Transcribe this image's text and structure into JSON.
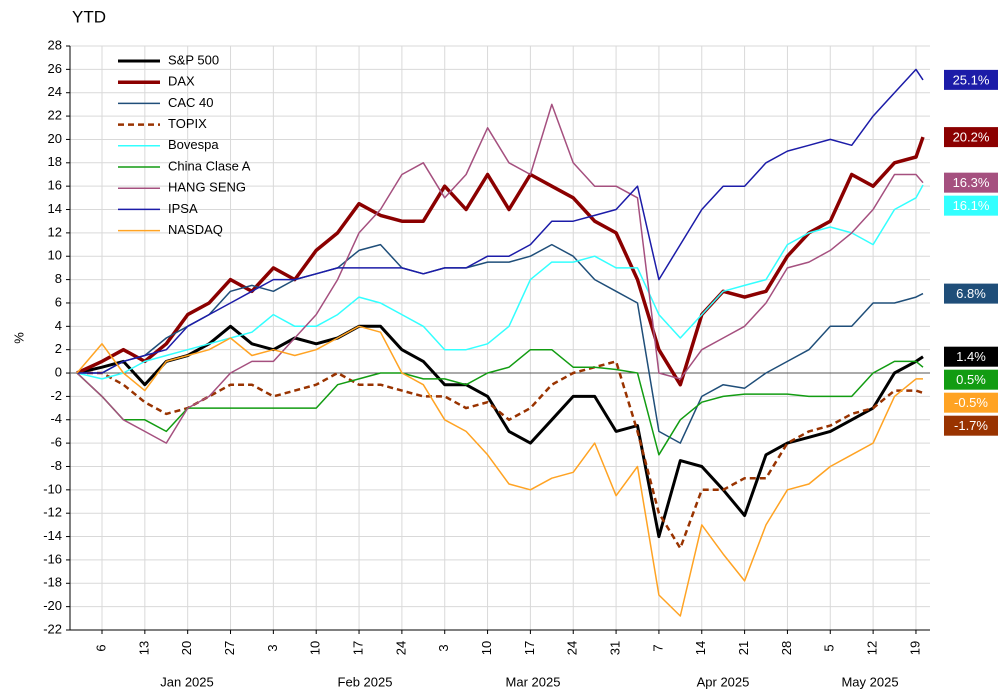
{
  "chart_data": {
    "type": "line",
    "title": "YTD",
    "y_label": "%",
    "categories": [
      null,
      "6",
      null,
      "13",
      null,
      "20",
      null,
      "27",
      null,
      "3",
      null,
      "10",
      null,
      "17",
      null,
      "24",
      null,
      "3",
      null,
      "10",
      null,
      "17",
      null,
      "24",
      null,
      "31",
      null,
      "7",
      null,
      "14",
      null,
      "21",
      null,
      "28",
      null,
      "5",
      null,
      "12",
      null,
      "19",
      null
    ],
    "month_labels": [
      "Jan 2025",
      "Feb 2025",
      "Mar 2025",
      "Apr 2025",
      "May 2025"
    ],
    "ylim": [
      -22,
      28
    ],
    "yticks": [
      -22,
      -20,
      -18,
      -16,
      -14,
      -12,
      -10,
      -8,
      -6,
      -4,
      -2,
      0,
      2,
      4,
      6,
      8,
      10,
      12,
      14,
      16,
      18,
      20,
      22,
      24,
      26,
      28
    ],
    "grid": true,
    "series": [
      {
        "name": "S&P 500",
        "color": "#000000",
        "width": 3,
        "end_label": "1.4%",
        "values": [
          0,
          0.5,
          1,
          -1,
          1,
          1.5,
          2.5,
          4,
          2.5,
          2,
          3,
          2.5,
          3,
          4,
          4,
          2,
          1,
          -1,
          -1,
          -2,
          -5,
          -6,
          -4,
          -2,
          -2,
          -5,
          -4.5,
          -14,
          -7.5,
          -8,
          -10,
          -12.2,
          -7,
          -6,
          -5.5,
          -5,
          -4,
          -3,
          0,
          1,
          1.4
        ]
      },
      {
        "name": "DAX",
        "color": "#8b0000",
        "width": 3.5,
        "end_label": "20.2%",
        "values": [
          0,
          1,
          2,
          1,
          2.5,
          5,
          6,
          8,
          7,
          9,
          8,
          10.5,
          12,
          14.5,
          13.5,
          13,
          13,
          16,
          14,
          17,
          14,
          17,
          16,
          15,
          13,
          12,
          8,
          2,
          -1,
          5,
          7,
          6.5,
          7,
          10,
          12,
          13,
          17,
          16,
          18,
          18.5,
          20.2
        ]
      },
      {
        "name": "CAC 40",
        "color": "#1f4e79",
        "width": 1.5,
        "end_label": "6.8%",
        "values": [
          0,
          0,
          1,
          1.5,
          3,
          4,
          5,
          7,
          7.5,
          7,
          8,
          8.5,
          9,
          10.5,
          11,
          9,
          8.5,
          9,
          9,
          9.5,
          9.5,
          10,
          11,
          10,
          8,
          7,
          6,
          -5,
          -6,
          -2,
          -1,
          -1.3,
          0,
          1,
          2,
          4,
          4,
          6,
          6,
          6.5,
          6.8
        ]
      },
      {
        "name": "TOPIX",
        "color": "#993300",
        "width": 2.5,
        "dashed": true,
        "end_label": "-1.7%",
        "values": [
          0,
          0,
          -1,
          -2.5,
          -3.5,
          -3,
          -2,
          -1,
          -1,
          -2,
          -1.5,
          -1,
          0,
          -1,
          -1,
          -1.5,
          -2,
          -2,
          -3,
          -2.5,
          -4,
          -3,
          -1,
          0,
          0.5,
          1,
          -5,
          -12,
          -15,
          -10,
          -10,
          -9,
          -9,
          -6,
          -5,
          -4.5,
          -3.5,
          -3,
          -1.5,
          -1.5,
          -1.7
        ]
      },
      {
        "name": "Bovespa",
        "color": "#33ffff",
        "width": 1.5,
        "end_label": "16.1%",
        "values": [
          0,
          -0.5,
          0,
          1,
          1.5,
          2,
          2.5,
          3,
          3.5,
          5,
          4,
          4,
          5,
          6.5,
          6,
          5,
          4,
          2,
          2,
          2.5,
          4,
          8,
          9.5,
          9.5,
          10,
          9,
          9,
          5,
          3,
          5,
          7,
          7.5,
          8,
          11,
          12,
          12.5,
          12,
          11,
          14,
          15,
          16.1
        ]
      },
      {
        "name": "China Clase A",
        "color": "#129c12",
        "width": 1.5,
        "end_label": "0.5%",
        "values": [
          0,
          -2,
          -4,
          -4,
          -5,
          -3,
          -3,
          -3,
          -3,
          -3,
          -3,
          -3,
          -1,
          -0.5,
          0,
          0,
          -0.5,
          -0.5,
          -1,
          0,
          0.5,
          2,
          2,
          0.5,
          0.5,
          0.3,
          0,
          -7,
          -4,
          -2.5,
          -2,
          -1.8,
          -1.8,
          -1.8,
          -2,
          -2,
          -2,
          0,
          1,
          1,
          0.5
        ]
      },
      {
        "name": "HANG SENG",
        "color": "#a5507f",
        "width": 1.5,
        "end_label": "16.3%",
        "values": [
          0,
          -2,
          -4,
          -5,
          -6,
          -3,
          -2,
          0,
          1,
          1,
          3,
          5,
          8,
          12,
          14,
          17,
          18,
          15,
          17,
          21,
          18,
          17,
          23,
          18,
          16,
          16,
          15,
          0,
          -0.5,
          2,
          3,
          4,
          6,
          9,
          9.5,
          10.5,
          12,
          14,
          17,
          17,
          16.3
        ]
      },
      {
        "name": "IPSA",
        "color": "#1c1ca8",
        "width": 1.5,
        "end_label": "25.1%",
        "values": [
          0,
          0,
          1,
          1.5,
          2,
          4,
          5,
          6,
          7,
          8,
          8,
          8.5,
          9,
          9,
          9,
          9,
          8.5,
          9,
          9,
          10,
          10,
          11,
          13,
          13,
          13.5,
          14,
          16,
          8,
          11,
          14,
          16,
          16,
          18,
          19,
          19.5,
          20,
          19.5,
          22,
          24,
          26,
          25.1
        ]
      },
      {
        "name": "NASDAQ",
        "color": "#ffa323",
        "width": 1.5,
        "end_label": "-0.5%",
        "values": [
          0,
          2.5,
          0,
          -1.5,
          1,
          1.5,
          2,
          3,
          1.5,
          2,
          1.5,
          2,
          3,
          4,
          3.5,
          0,
          -1,
          -4,
          -5,
          -7,
          -9.5,
          -10,
          -9,
          -8.5,
          -6,
          -10.5,
          -8,
          -19,
          -20.8,
          -13,
          -15.5,
          -17.8,
          -13,
          -10,
          -9.5,
          -8,
          -7,
          -6,
          -2,
          -0.5,
          -0.5
        ]
      }
    ]
  }
}
